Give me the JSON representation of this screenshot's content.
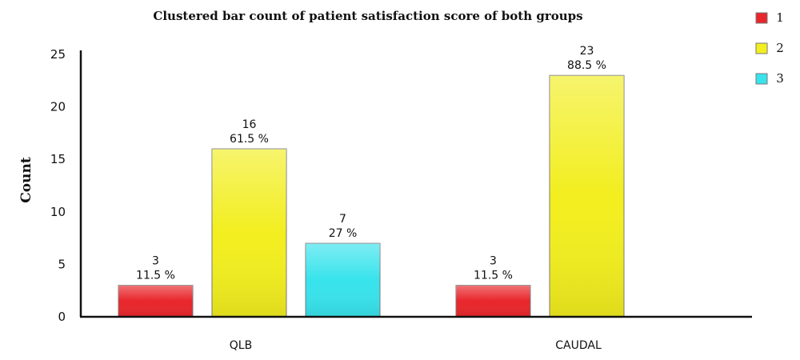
{
  "chart_data": {
    "type": "bar",
    "title": "Clustered bar count of patient satisfaction score of both groups",
    "ylabel": "Count",
    "xlabel": "",
    "ylim": [
      0,
      25
    ],
    "yticks": [
      0,
      5,
      10,
      15,
      20,
      25
    ],
    "categories": [
      "QLB",
      "CAUDAL"
    ],
    "legend_position": "right",
    "grid": false,
    "series": [
      {
        "name": "1",
        "color": "#e8262b",
        "values": [
          3,
          3
        ],
        "percent_labels": [
          "11.5 %",
          "11.5 %"
        ]
      },
      {
        "name": "2",
        "color": "#f2ee1f",
        "values": [
          16,
          23
        ],
        "percent_labels": [
          "61.5 %",
          "88.5 %"
        ]
      },
      {
        "name": "3",
        "color": "#38e3ec",
        "values": [
          7,
          null
        ],
        "percent_labels": [
          "27 %",
          null
        ]
      }
    ]
  }
}
